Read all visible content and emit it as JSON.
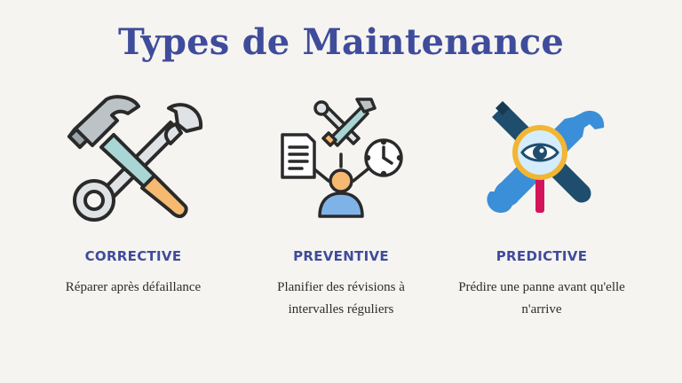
{
  "title": "Types de Maintenance",
  "columns": [
    {
      "icon": "hammer-wrench-icon",
      "label": "CORRECTIVE",
      "description": "Réparer après défaillance"
    },
    {
      "icon": "schedule-network-icon",
      "label": "PREVENTIVE",
      "description": "Planifier des révisions à intervalles réguliers"
    },
    {
      "icon": "tools-magnifier-eye-icon",
      "label": "PREDICTIVE",
      "description": "Prédire une panne avant qu'elle n'arrive"
    }
  ],
  "colors": {
    "background": "#f6f4f1",
    "accent": "#3f4c9b",
    "text": "#2d2d2d"
  }
}
